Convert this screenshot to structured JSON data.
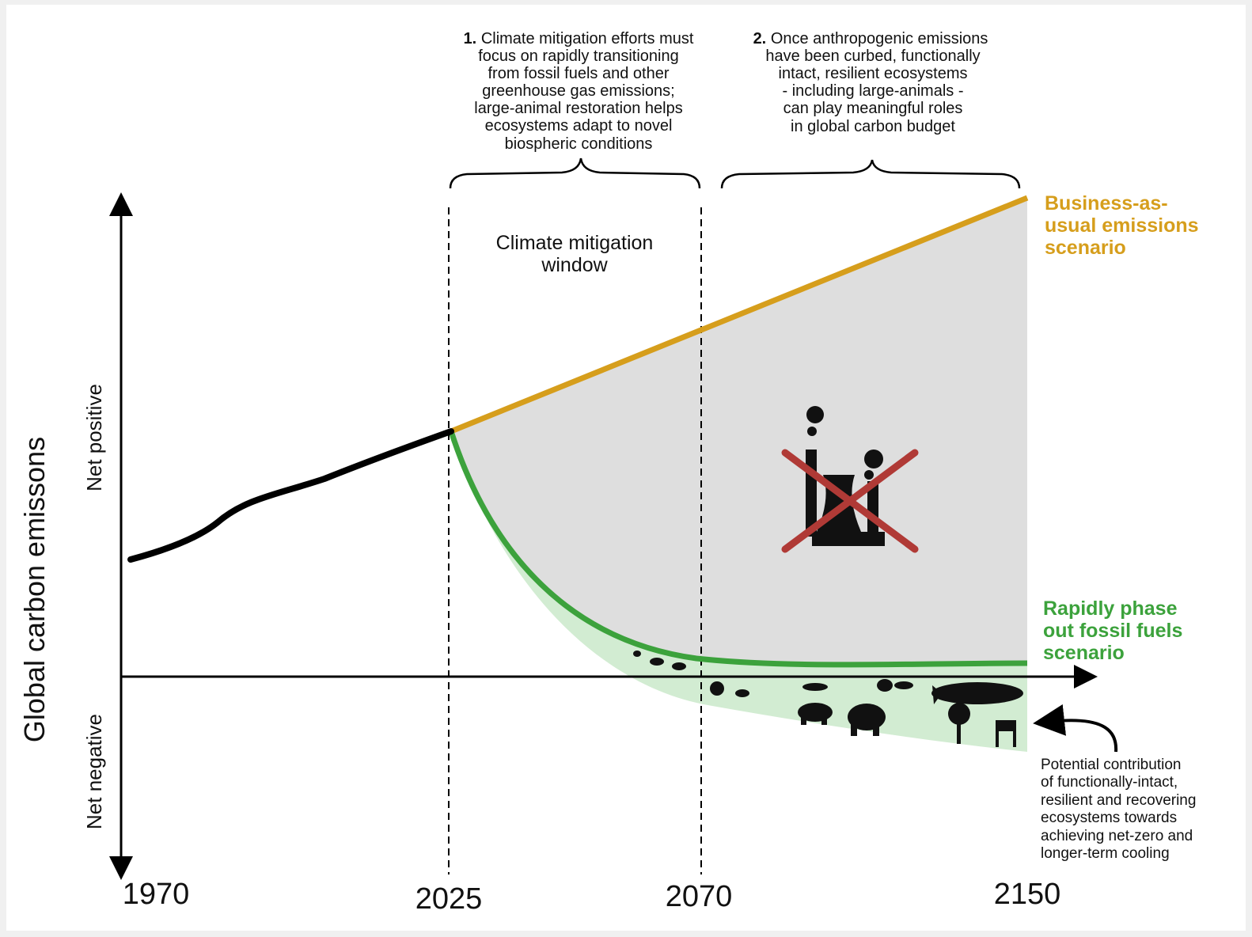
{
  "axis_label": "Global carbon emissons",
  "net_positive": "Net positive",
  "net_negative": "Net negative",
  "years": [
    "1970",
    "2025",
    "2070",
    "2150"
  ],
  "annotations": [
    {
      "number": "1.",
      "lines": [
        "Climate mitigation efforts must",
        "focus on rapidly transitioning",
        "from fossil fuels and other",
        "greenhouse gas emissions;",
        "large-animal restoration helps",
        "ecosystems adapt to novel",
        "biospheric conditions"
      ]
    },
    {
      "number": "2.",
      "lines": [
        "Once anthropogenic emissions",
        "have been curbed, functionally",
        "intact, resilient ecosystems",
        "- including large-animals -",
        "can play meaningful roles",
        "in global carbon budget"
      ]
    }
  ],
  "window_label": [
    "Climate mitigation",
    "window"
  ],
  "scenarios": [
    {
      "lines": [
        "Business-as-",
        "usual emissions",
        "scenario"
      ]
    },
    {
      "lines": [
        "Rapidly phase",
        "out fossil fuels",
        "scenario"
      ]
    }
  ],
  "contribution_note": [
    "Potential contribution",
    "of functionally-intact,",
    "resilient and recovering",
    "ecosystems towards",
    "achieving net-zero and",
    "longer-term cooling"
  ]
}
